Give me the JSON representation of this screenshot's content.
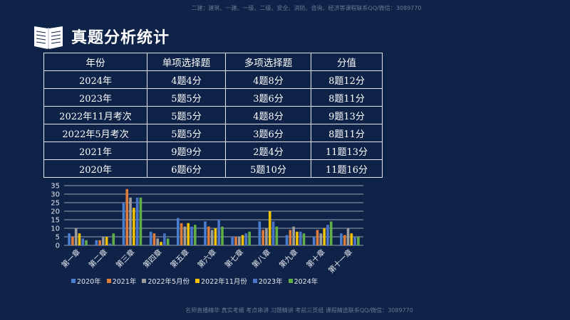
{
  "watermark_top": "二建：建筑、一建、一级、二级、安全、消防、咨询、经济等课程联系QQ/微信：3089770",
  "watermark_bottom": "名师直播精华  真实考纲  考点串讲  习题精讲  考前三页纸  课程精选联系QQ/微信：3089770",
  "title": "真题分析统计",
  "table": {
    "headers": [
      "年份",
      "单项选择题",
      "多项选择题",
      "分值"
    ],
    "rows": [
      [
        "2024年",
        "4题4分",
        "4题8分",
        "8题12分"
      ],
      [
        "2023年",
        "5题5分",
        "3题6分",
        "8题11分"
      ],
      [
        "2022年11月考次",
        "5题5分",
        "4题8分",
        "9题13分"
      ],
      [
        "2022年5月考次",
        "5题5分",
        "3题6分",
        "8题11分"
      ],
      [
        "2021年",
        "9题9分",
        "2题4分",
        "11题13分"
      ],
      [
        "2020年",
        "6题6分",
        "5题10分",
        "11题16分"
      ]
    ]
  },
  "chart_data": {
    "type": "bar",
    "categories": [
      "第一章",
      "第二章",
      "第三章",
      "第四章",
      "第五章",
      "第六章",
      "第七章",
      "第八章",
      "第九章",
      "第十章",
      "第十一章"
    ],
    "ylim": [
      0,
      35
    ],
    "yticks": [
      0,
      5,
      10,
      15,
      20,
      25,
      30,
      35
    ],
    "grid": true,
    "legend_position": "bottom",
    "series": [
      {
        "name": "2020年",
        "color": "#4a7fd0",
        "values": [
          7,
          3,
          25,
          8,
          16,
          14,
          5,
          14,
          6,
          5,
          7
        ]
      },
      {
        "name": "2021年",
        "color": "#e07c3a",
        "values": [
          5,
          3,
          33,
          7,
          13,
          11,
          5,
          9,
          9,
          9,
          6
        ]
      },
      {
        "name": "2022年5月份",
        "color": "#9d9d9d",
        "values": [
          10,
          5,
          28,
          4,
          11,
          9,
          5,
          10,
          11,
          7,
          10
        ]
      },
      {
        "name": "2022年11月份",
        "color": "#f2c100",
        "values": [
          7,
          5,
          22,
          2,
          13,
          10,
          6,
          20,
          8,
          10,
          7
        ]
      },
      {
        "name": "2023年",
        "color": "#4d74c9",
        "values": [
          4,
          1,
          28,
          7,
          11,
          15,
          7,
          14,
          8,
          12,
          5
        ]
      },
      {
        "name": "2024年",
        "color": "#5fae46",
        "values": [
          3,
          7,
          28,
          4,
          12,
          11,
          8,
          11,
          7,
          14,
          5
        ]
      }
    ]
  },
  "colors": {
    "background": "#0e2347",
    "table_border": "#e6e8ef",
    "grid": "#c9ccd6"
  }
}
